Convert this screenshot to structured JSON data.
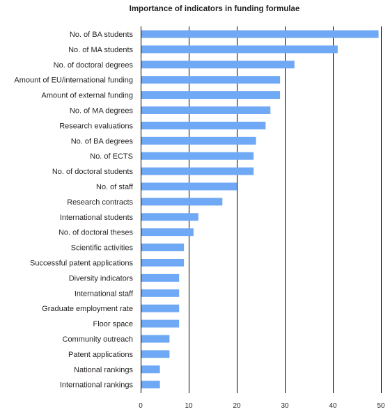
{
  "chart_data": {
    "type": "bar",
    "orientation": "horizontal",
    "title": "Importance of indicators in funding formulae",
    "xlabel": "",
    "ylabel": "",
    "xlim": [
      0,
      50
    ],
    "xticks": [
      0,
      10,
      20,
      30,
      40,
      50
    ],
    "grid": true,
    "bar_color": "#6fa8f4",
    "categories": [
      "No. of BA students",
      "No. of MA students",
      "No. of doctoral degrees",
      "Amount of EU/international funding",
      "Amount of external funding",
      "No. of MA degrees",
      "Research evaluations",
      "No. of BA degrees",
      "No. of ECTS",
      "No. of doctoral students",
      "No. of staff",
      "Research contracts",
      "International students",
      "No. of doctoral theses",
      "Scientific activities",
      "Successful patent applications",
      "Diversity indicators",
      "International staff",
      "Graduate employment rate",
      "Floor space",
      "Community outreach",
      "Patent applications",
      "National rankings",
      "International rankings"
    ],
    "values": [
      49.5,
      41,
      32,
      29,
      29,
      27,
      26,
      24,
      23.5,
      23.5,
      20,
      17,
      12,
      11,
      9,
      9,
      8,
      8,
      8,
      8,
      6,
      6,
      4,
      4
    ]
  }
}
